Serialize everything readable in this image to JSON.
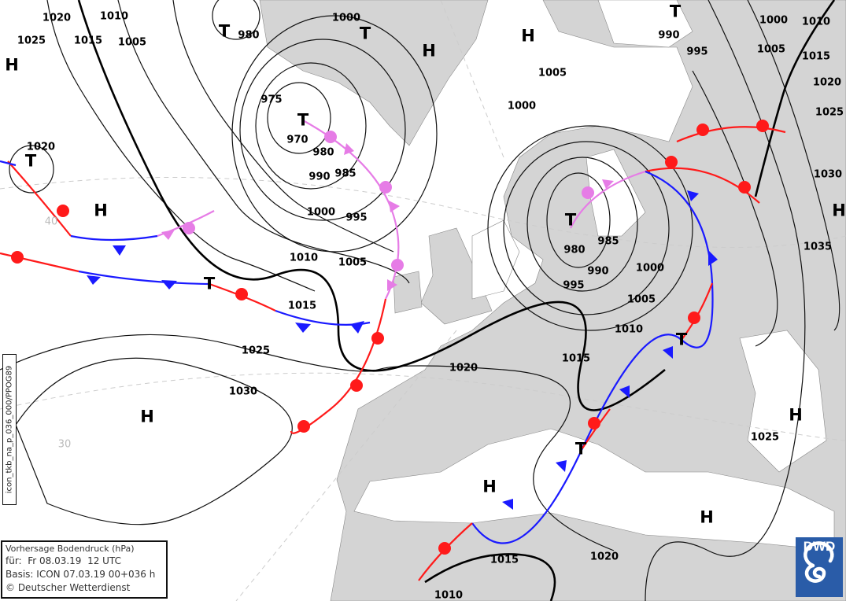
{
  "map": {
    "legend": {
      "title": "Vorhersage Bodendruck (hPa)",
      "valid": "für:  Fr 08.03.19  12 UTC",
      "base": "Basis: ICON  07.03.19 00+036 h",
      "copyright": "© Deutscher Wetterdienst"
    },
    "product_code": "icon_tkb_na_p_036_000/PPOG89",
    "logo": "DWD",
    "colors": {
      "land": "#d4d4d4",
      "sea": "#ffffff",
      "cold_front": "#1a1aff",
      "warm_front": "#ff1a1a",
      "occlusion": "#e67ce6",
      "brand": "#2a5ca8"
    },
    "isobar_labels": [
      "1020",
      "1010",
      "1025",
      "1015",
      "1005",
      "980",
      "1000",
      "975",
      "970",
      "980",
      "985",
      "990",
      "1000",
      "995",
      "1010",
      "1005",
      "1015",
      "1020",
      "1025",
      "1030",
      "1020",
      "1015",
      "1010",
      "1005",
      "995",
      "990",
      "1000",
      "985",
      "980",
      "1000",
      "1005",
      "990",
      "995",
      "1000",
      "1010",
      "1005",
      "1015",
      "1020",
      "1025",
      "1030",
      "1035",
      "1025",
      "1015",
      "1020",
      "1010"
    ],
    "high_label": "H",
    "low_label": "T",
    "latitude_labels": [
      "40",
      "30"
    ]
  }
}
